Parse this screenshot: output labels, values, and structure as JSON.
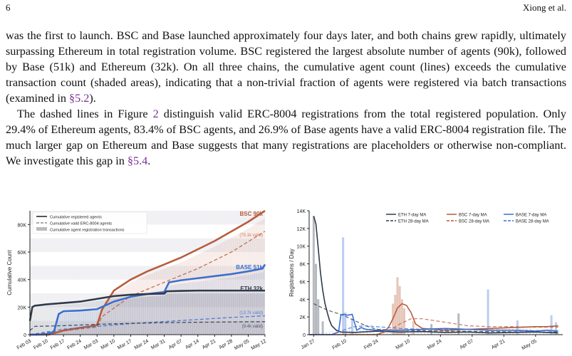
{
  "page": {
    "number": "6",
    "running_head": "Xiong et al."
  },
  "paragraphs": [
    {
      "text_a": "was the first to launch. BSC and Base launched approximately four days later, and both chains grew rapidly, ultimately surpassing Ethereum in total registration volume. BSC registered the largest absolute number of agents (90k), followed by Base (51k) and Ethereum (32k). On all three chains, the cumulative agent count (lines) exceeds the cumulative transaction count (shaded areas), indicating that a non-trivial fraction of agents were registered via batch transactions (examined in ",
      "ref": "§5.2",
      "text_b": ")."
    },
    {
      "text_a": "The dashed lines in Figure ",
      "ref_a": "2",
      "text_b": " distinguish valid ERC-8004 registrations from the total registered population. Only 29.4% of Ethereum agents, 83.4% of BSC agents, and 26.9% of Base agents have a valid ERC-8004 registration file. The much larger gap on Ethereum and Base suggests that many registrations are placeholders or otherwise non-compliant. We investigate this gap in ",
      "ref_b": "§5.4",
      "text_c": "."
    }
  ],
  "colors": {
    "eth": "#2f3a4a",
    "bsc": "#b95c3a",
    "base": "#3a6fd0",
    "ref": "#7b3294"
  },
  "chart_data": [
    {
      "type": "line",
      "ylabel": "Cumulative Count",
      "ylim": [
        0,
        90000
      ],
      "yticks": [
        "0",
        "20K",
        "40K",
        "60K",
        "80K"
      ],
      "xticks": [
        "Feb 03",
        "Feb 10",
        "Feb 17",
        "Feb 24",
        "Mar 03",
        "Mar 10",
        "Mar 17",
        "Mar 24",
        "Mar 31",
        "Apr 07",
        "Apr 14",
        "Apr 21",
        "Apr 28",
        "May 05",
        "May 12"
      ],
      "legend": [
        "Cumulative registered agents",
        "Cumulative valid ERC-8004 agents",
        "Cumulative agent registration transactions"
      ],
      "legend_position": "top-left",
      "series": [
        {
          "name": "BSC",
          "end_label": "BSC 90k",
          "valid_label": "(75.1k valid)",
          "x": [
            0,
            8,
            14,
            21,
            25,
            28,
            30,
            35,
            42,
            49,
            56,
            63,
            70,
            77,
            84,
            91,
            98
          ],
          "y": [
            0,
            0,
            3000,
            5000,
            6000,
            7000,
            18000,
            32000,
            40000,
            46000,
            51000,
            56000,
            62000,
            68000,
            75000,
            82000,
            90000
          ],
          "valid_x": [
            0,
            28,
            30,
            42,
            56,
            70,
            84,
            98
          ],
          "valid_y": [
            0,
            5500,
            13000,
            28000,
            38000,
            48000,
            60000,
            75100
          ]
        },
        {
          "name": "BASE",
          "end_label": "BASE 51k",
          "valid_label": "(13.7k valid)",
          "x": [
            0,
            3,
            7,
            10,
            12,
            14,
            21,
            28,
            35,
            42,
            49,
            56,
            58,
            63,
            70,
            77,
            84,
            91,
            97,
            98
          ],
          "y": [
            0,
            0,
            500,
            2000,
            15000,
            17000,
            17500,
            18500,
            24000,
            27500,
            29500,
            31000,
            38000,
            39500,
            41000,
            42500,
            44000,
            46000,
            48000,
            51000
          ],
          "valid_x": [
            0,
            14,
            28,
            42,
            56,
            70,
            84,
            98
          ],
          "valid_y": [
            0,
            4000,
            6000,
            8000,
            9500,
            11000,
            12500,
            13700
          ]
        },
        {
          "name": "ETH",
          "end_label": "ETH 32k",
          "valid_label": "(9.4k valid)",
          "x": [
            0,
            1,
            2,
            7,
            14,
            21,
            28,
            35,
            42,
            49,
            56,
            57,
            63,
            70,
            77,
            84,
            91,
            98
          ],
          "y": [
            10000,
            20000,
            21000,
            22000,
            23000,
            24000,
            26000,
            28000,
            29000,
            29500,
            29800,
            31500,
            31800,
            32000,
            32000,
            32000,
            32000,
            32000
          ],
          "valid_x": [
            0,
            2,
            14,
            28,
            42,
            56,
            70,
            84,
            98
          ],
          "valid_y": [
            3000,
            6000,
            6500,
            7500,
            8200,
            8700,
            9000,
            9200,
            9400
          ]
        }
      ]
    },
    {
      "type": "line",
      "ylabel": "Registrations / Day",
      "ylim": [
        0,
        14000
      ],
      "yticks": [
        "0",
        "2K",
        "4K",
        "6K",
        "8K",
        "10K",
        "12K",
        "14K"
      ],
      "xticks": [
        "Jan 27",
        "Feb 10",
        "Feb 24",
        "Mar 10",
        "Mar 24",
        "Apr 07",
        "Apr 21",
        "May 05"
      ],
      "legend": [
        "ETH 7-day MA",
        "ETH 28-day MA",
        "BSC 7-day MA",
        "BSC 28-day MA",
        "BASE 7-day MA",
        "BASE 28-day MA"
      ],
      "legend_position": "top-center",
      "series": [
        {
          "name": "ETH 7-day MA",
          "x": [
            2,
            3,
            4,
            5,
            6,
            7,
            8,
            9,
            10,
            12,
            14,
            20,
            30,
            40,
            50,
            60,
            70,
            80,
            90,
            100,
            110
          ],
          "y": [
            13400,
            12500,
            9800,
            7000,
            5000,
            3500,
            2500,
            1600,
            1000,
            500,
            300,
            250,
            400,
            300,
            350,
            250,
            300,
            200,
            250,
            300,
            200
          ]
        },
        {
          "name": "ETH 28-day MA",
          "x": [
            2,
            6,
            10,
            15,
            20,
            25,
            30,
            40,
            50,
            60,
            70,
            80,
            90,
            100,
            110
          ],
          "y": [
            3500,
            3000,
            2600,
            2200,
            1600,
            1000,
            600,
            500,
            450,
            400,
            380,
            350,
            320,
            300,
            300
          ]
        },
        {
          "name": "BSC 7-day MA",
          "x": [
            0,
            30,
            33,
            35,
            37,
            39,
            41,
            43,
            45,
            47,
            50,
            55,
            60,
            70,
            80,
            90,
            100,
            105,
            110
          ],
          "y": [
            0,
            0,
            300,
            800,
            1800,
            3000,
            3500,
            3300,
            2500,
            1200,
            700,
            600,
            500,
            600,
            700,
            800,
            900,
            900,
            1000
          ]
        },
        {
          "name": "BSC 28-day MA",
          "x": [
            0,
            30,
            35,
            40,
            45,
            50,
            55,
            60,
            70,
            80,
            90,
            100,
            110
          ],
          "y": [
            0,
            0,
            400,
            1200,
            1800,
            1800,
            1600,
            1400,
            1000,
            900,
            900,
            850,
            850
          ]
        },
        {
          "name": "BASE 7-day MA",
          "x": [
            0,
            10,
            13,
            14,
            15,
            17,
            19,
            21,
            23,
            25,
            30,
            40,
            50,
            60,
            70,
            80,
            90,
            100,
            105,
            110
          ],
          "y": [
            0,
            0,
            300,
            2200,
            2300,
            2200,
            2300,
            500,
            800,
            600,
            500,
            500,
            600,
            700,
            600,
            500,
            500,
            400,
            500,
            400
          ]
        },
        {
          "name": "BASE 28-day MA",
          "x": [
            0,
            10,
            15,
            20,
            25,
            30,
            40,
            50,
            60,
            70,
            80,
            90,
            100,
            110
          ],
          "y": [
            0,
            0,
            500,
            900,
            1000,
            900,
            700,
            600,
            600,
            600,
            550,
            500,
            450,
            450
          ]
        }
      ]
    }
  ]
}
